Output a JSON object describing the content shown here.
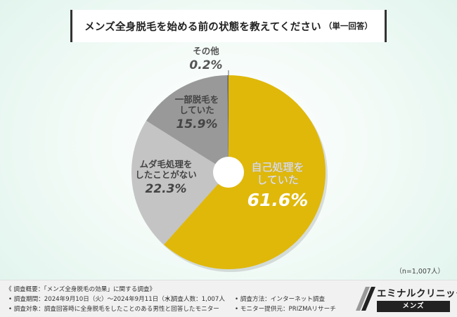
{
  "title": "メンズ全身脱毛を始める前の状態を教えてください",
  "title_note": "（単一回答）",
  "chart_data": {
    "type": "pie",
    "title": "メンズ全身脱毛を始める前の状態を教えてください",
    "slices": [
      {
        "label_lines": [
          "自己処理を",
          "していた"
        ],
        "value": 61.6,
        "value_label": "61.6%",
        "color": "#e0b80a",
        "text_color": "#ffffff"
      },
      {
        "label_lines": [
          "ムダ毛処理を",
          "したことがない"
        ],
        "value": 22.3,
        "value_label": "22.3%",
        "color": "#c4c4c4",
        "text_color": "#444444"
      },
      {
        "label_lines": [
          "一部脱毛を",
          "していた"
        ],
        "value": 15.9,
        "value_label": "15.9%",
        "color": "#999999",
        "text_color": "#444444"
      },
      {
        "label_lines": [
          "その他"
        ],
        "value": 0.2,
        "value_label": "0.2%",
        "color": "#666666",
        "text_color": "#555555"
      }
    ]
  },
  "sample_note": "（n=1,007人）",
  "footer": {
    "line1": "《 調査概要：「メンズ全身脱毛の効果」に関する調査》",
    "period": "• 調査期間：2024年9月10日（火）〜2024年9月11日（水）",
    "count": "• 調査人数：1,007人",
    "method": "• 調査方法：インターネット調査",
    "target": "• 調査対象：調査回答時に全身脱毛をしたことのある男性と回答したモニター",
    "provider": "• モニター提供元：PRIZMAリサーチ"
  },
  "logo": {
    "name": "エミナルクリニック",
    "sub": "メンズ"
  }
}
